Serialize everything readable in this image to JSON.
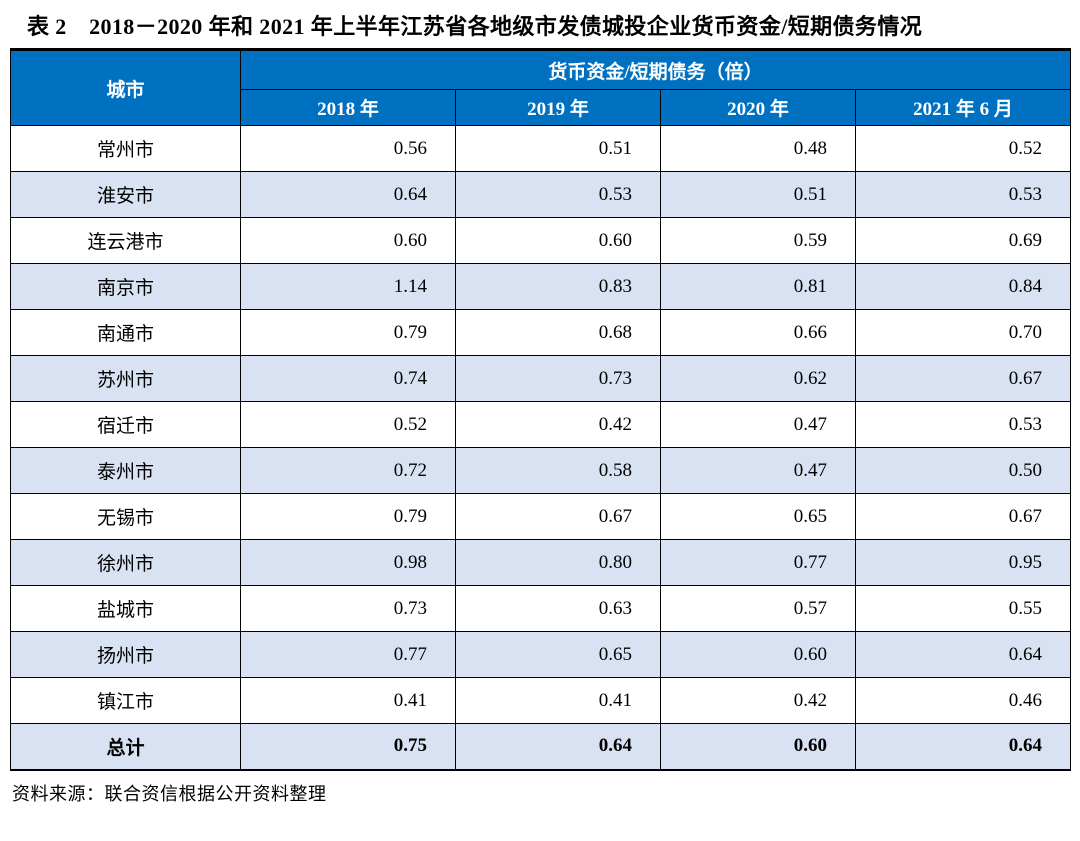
{
  "title": "表 2　2018－2020 年和 2021 年上半年江苏省各地级市发债城投企业货币资金/短期债务情况",
  "source": "资料来源：联合资信根据公开资料整理",
  "colors": {
    "header_bg": "#0070C0",
    "header_text": "#FFFFFF",
    "stripe_bg": "#D9E2F3",
    "border": "#000000"
  },
  "table": {
    "col_city_header": "城市",
    "group_header": "货币资金/短期债务（倍）",
    "year_headers": [
      "2018 年",
      "2019 年",
      "2020 年",
      "2021 年 6 月"
    ],
    "rows": [
      {
        "city": "常州市",
        "values": [
          "0.56",
          "0.51",
          "0.48",
          "0.52"
        ]
      },
      {
        "city": "淮安市",
        "values": [
          "0.64",
          "0.53",
          "0.51",
          "0.53"
        ]
      },
      {
        "city": "连云港市",
        "values": [
          "0.60",
          "0.60",
          "0.59",
          "0.69"
        ]
      },
      {
        "city": "南京市",
        "values": [
          "1.14",
          "0.83",
          "0.81",
          "0.84"
        ]
      },
      {
        "city": "南通市",
        "values": [
          "0.79",
          "0.68",
          "0.66",
          "0.70"
        ]
      },
      {
        "city": "苏州市",
        "values": [
          "0.74",
          "0.73",
          "0.62",
          "0.67"
        ]
      },
      {
        "city": "宿迁市",
        "values": [
          "0.52",
          "0.42",
          "0.47",
          "0.53"
        ]
      },
      {
        "city": "泰州市",
        "values": [
          "0.72",
          "0.58",
          "0.47",
          "0.50"
        ]
      },
      {
        "city": "无锡市",
        "values": [
          "0.79",
          "0.67",
          "0.65",
          "0.67"
        ]
      },
      {
        "city": "徐州市",
        "values": [
          "0.98",
          "0.80",
          "0.77",
          "0.95"
        ]
      },
      {
        "city": "盐城市",
        "values": [
          "0.73",
          "0.63",
          "0.57",
          "0.55"
        ]
      },
      {
        "city": "扬州市",
        "values": [
          "0.77",
          "0.65",
          "0.60",
          "0.64"
        ]
      },
      {
        "city": "镇江市",
        "values": [
          "0.41",
          "0.41",
          "0.42",
          "0.46"
        ]
      }
    ],
    "total": {
      "city": "总计",
      "values": [
        "0.75",
        "0.64",
        "0.60",
        "0.64"
      ]
    }
  },
  "chart_data": {
    "type": "table",
    "title": "表 2　2018－2020 年和 2021 年上半年江苏省各地级市发债城投企业货币资金/短期债务情况",
    "group_header": "货币资金/短期债务（倍）",
    "categories": [
      "2018 年",
      "2019 年",
      "2020 年",
      "2021 年 6 月"
    ],
    "series": [
      {
        "name": "常州市",
        "values": [
          0.56,
          0.51,
          0.48,
          0.52
        ]
      },
      {
        "name": "淮安市",
        "values": [
          0.64,
          0.53,
          0.51,
          0.53
        ]
      },
      {
        "name": "连云港市",
        "values": [
          0.6,
          0.6,
          0.59,
          0.69
        ]
      },
      {
        "name": "南京市",
        "values": [
          1.14,
          0.83,
          0.81,
          0.84
        ]
      },
      {
        "name": "南通市",
        "values": [
          0.79,
          0.68,
          0.66,
          0.7
        ]
      },
      {
        "name": "苏州市",
        "values": [
          0.74,
          0.73,
          0.62,
          0.67
        ]
      },
      {
        "name": "宿迁市",
        "values": [
          0.52,
          0.42,
          0.47,
          0.53
        ]
      },
      {
        "name": "泰州市",
        "values": [
          0.72,
          0.58,
          0.47,
          0.5
        ]
      },
      {
        "name": "无锡市",
        "values": [
          0.79,
          0.67,
          0.65,
          0.67
        ]
      },
      {
        "name": "徐州市",
        "values": [
          0.98,
          0.8,
          0.77,
          0.95
        ]
      },
      {
        "name": "盐城市",
        "values": [
          0.73,
          0.63,
          0.57,
          0.55
        ]
      },
      {
        "name": "扬州市",
        "values": [
          0.77,
          0.65,
          0.6,
          0.64
        ]
      },
      {
        "name": "镇江市",
        "values": [
          0.41,
          0.41,
          0.42,
          0.46
        ]
      },
      {
        "name": "总计",
        "values": [
          0.75,
          0.64,
          0.6,
          0.64
        ]
      }
    ]
  }
}
